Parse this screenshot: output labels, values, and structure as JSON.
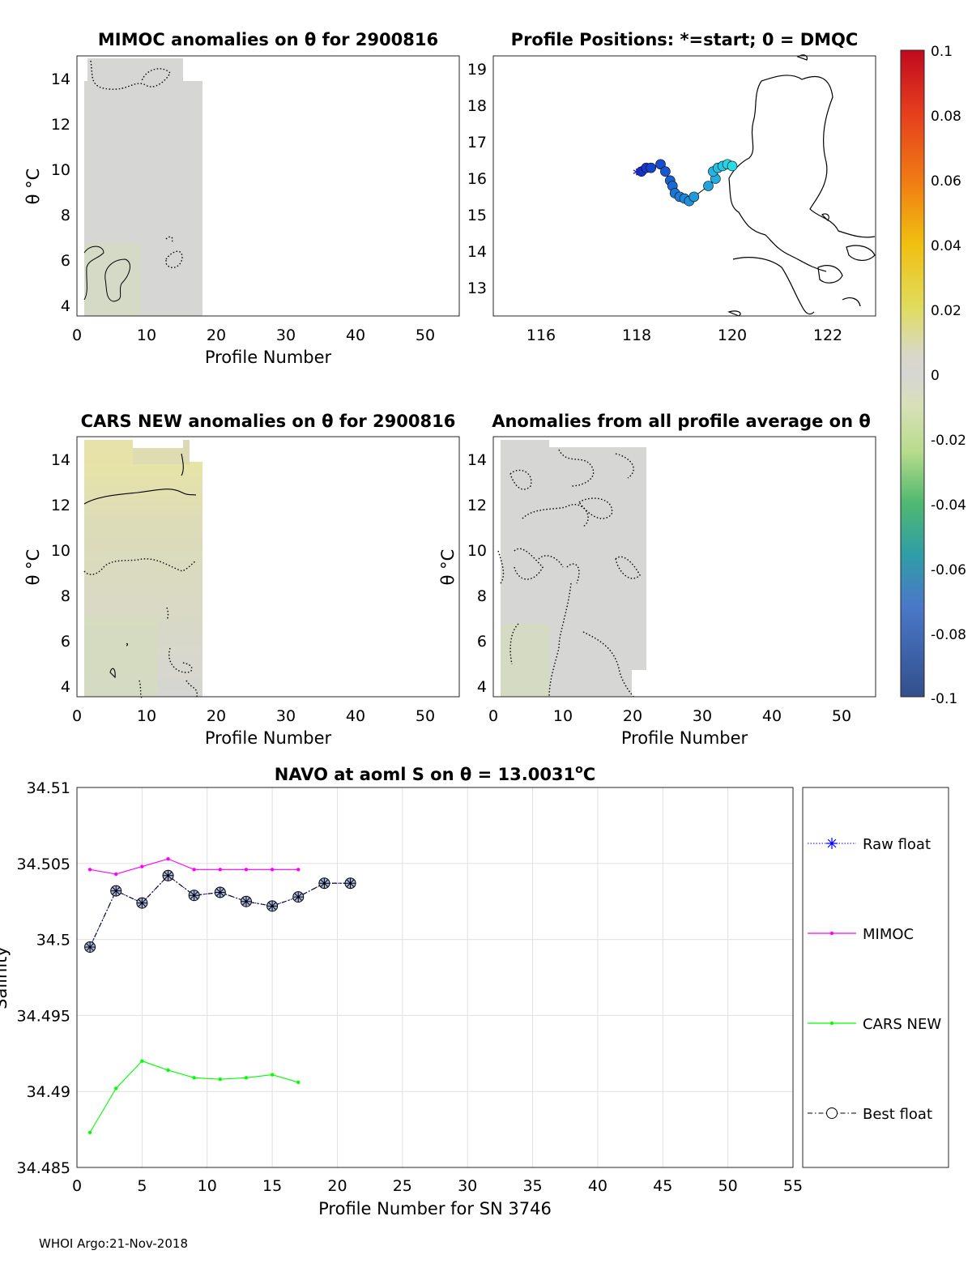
{
  "footer": "WHOI Argo:21-Nov-2018",
  "colors": {
    "raw_float": "#0000ff",
    "mimoc": "#ff00ff",
    "cars_new": "#00ff00",
    "best_float": "#000000",
    "best_float_fill": "#aab8e8",
    "field_gray": "#d6d6d4",
    "grid": "#e0e0e0"
  },
  "chart_data": [
    {
      "id": "mimoc",
      "type": "heatmap",
      "title": "MIMOC anomalies on θ  for 2900816",
      "xlabel": "Profile Number",
      "ylabel": "θ °C",
      "xlim": [
        0,
        55
      ],
      "ylim": [
        3.5,
        15
      ],
      "xticks": [
        0,
        10,
        20,
        30,
        40,
        50
      ],
      "yticks": [
        4,
        6,
        8,
        10,
        12,
        14
      ],
      "field_extent_profiles": [
        1,
        18
      ]
    },
    {
      "id": "positions",
      "type": "scatter",
      "title": "Profile Positions: *=start; 0 = DMQC",
      "xlabel": "",
      "ylabel": "",
      "xlim": [
        115,
        123
      ],
      "ylim": [
        12.2,
        19.4
      ],
      "xticks": [
        116,
        118,
        120,
        122
      ],
      "yticks": [
        13,
        14,
        15,
        16,
        17,
        18,
        19
      ],
      "track_lon": [
        118.0,
        118.1,
        118.2,
        118.3,
        118.5,
        118.6,
        118.7,
        118.75,
        118.8,
        118.9,
        119.0,
        119.1,
        119.2,
        119.5,
        119.65,
        119.6,
        119.7,
        119.8,
        119.9,
        120.0
      ],
      "track_lat": [
        16.1,
        16.2,
        16.3,
        16.3,
        16.4,
        16.2,
        15.95,
        15.8,
        15.6,
        15.5,
        15.45,
        15.38,
        15.5,
        15.8,
        16.0,
        16.2,
        16.3,
        16.35,
        16.4,
        16.35
      ],
      "start_marker": "*"
    },
    {
      "id": "colorbar",
      "type": "heatmap",
      "ticks": [
        "0.1",
        "0.08",
        "0.06",
        "0.04",
        "0.02",
        "0",
        "-0.02",
        "-0.04",
        "-0.06",
        "-0.08",
        "-0.1"
      ],
      "range": [
        -0.1,
        0.1
      ]
    },
    {
      "id": "cars",
      "type": "heatmap",
      "title": "CARS NEW anomalies on θ for 2900816",
      "xlabel": "Profile Number",
      "ylabel": "θ °C",
      "xlim": [
        0,
        55
      ],
      "ylim": [
        3.5,
        15
      ],
      "xticks": [
        0,
        10,
        20,
        30,
        40,
        50
      ],
      "yticks": [
        4,
        6,
        8,
        10,
        12,
        14
      ],
      "field_extent_profiles": [
        1,
        18
      ]
    },
    {
      "id": "allavg",
      "type": "heatmap",
      "title": "Anomalies from all profile average on θ",
      "xlabel": "Profile Number",
      "ylabel": "θ °C",
      "xlim": [
        0,
        55
      ],
      "ylim": [
        3.5,
        15
      ],
      "xticks": [
        0,
        10,
        20,
        30,
        40,
        50
      ],
      "yticks": [
        4,
        6,
        8,
        10,
        12,
        14
      ],
      "field_extent_profiles": [
        1,
        22
      ]
    },
    {
      "id": "salinity",
      "type": "line",
      "title": "NAVO at aoml S on θ = 13.0031",
      "title_sup": "o",
      "title_unit": "C",
      "xlabel": "Profile Number for SN 3746",
      "ylabel": "Salinity",
      "xlim": [
        0,
        55
      ],
      "ylim": [
        34.485,
        34.51
      ],
      "xticks": [
        0,
        5,
        10,
        15,
        20,
        25,
        30,
        35,
        40,
        45,
        50,
        55
      ],
      "yticks": [
        34.485,
        34.49,
        34.495,
        34.5,
        34.505,
        34.51
      ],
      "ytick_labels": [
        "34.485",
        "34.49",
        "34.495",
        "34.5",
        "34.505",
        "34.51"
      ],
      "x": [
        1,
        3,
        5,
        7,
        9,
        11,
        13,
        15,
        17,
        19,
        21
      ],
      "series": [
        {
          "name": "Raw float",
          "x": [
            1,
            3,
            5,
            7,
            9,
            11,
            13,
            15,
            17,
            19,
            21
          ],
          "values": [
            34.4995,
            34.5032,
            34.5024,
            34.5042,
            34.5029,
            34.5031,
            34.5025,
            34.5022,
            34.5028,
            34.5037,
            34.5037
          ]
        },
        {
          "name": "MIMOC",
          "x": [
            1,
            3,
            5,
            7,
            9,
            11,
            13,
            15,
            17
          ],
          "values": [
            34.5046,
            34.5043,
            34.5048,
            34.5053,
            34.5046,
            34.5046,
            34.5046,
            34.5046,
            34.5046
          ]
        },
        {
          "name": "CARS NEW",
          "x": [
            1,
            3,
            5,
            7,
            9,
            11,
            13,
            15,
            17
          ],
          "values": [
            34.4873,
            34.4902,
            34.492,
            34.4914,
            34.4909,
            34.4908,
            34.4909,
            34.4911,
            34.4906
          ]
        },
        {
          "name": "Best float",
          "x": [
            1,
            3,
            5,
            7,
            9,
            11,
            13,
            15,
            17,
            19,
            21
          ],
          "values": [
            34.4995,
            34.5032,
            34.5024,
            34.5042,
            34.5029,
            34.5031,
            34.5025,
            34.5022,
            34.5028,
            34.5037,
            34.5037
          ]
        }
      ],
      "legend_position": "right"
    }
  ]
}
